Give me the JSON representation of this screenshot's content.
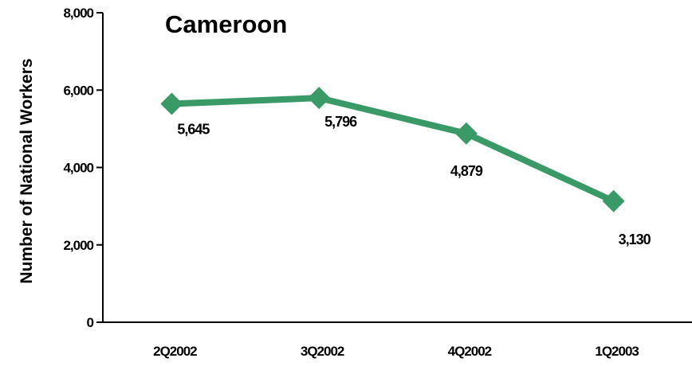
{
  "chart_data": {
    "type": "line",
    "title": "Cameroon",
    "ylabel": "Number of National Workers",
    "xlabel": "",
    "categories": [
      "2Q2002",
      "3Q2002",
      "4Q2002",
      "1Q2003"
    ],
    "series": [
      {
        "values": [
          5645,
          5796,
          4879,
          3130
        ]
      }
    ],
    "data_labels": [
      "5,645",
      "5,796",
      "4,879",
      "3,130"
    ],
    "ylim": [
      0,
      8000
    ],
    "yticks": [
      0,
      2000,
      4000,
      6000,
      8000
    ],
    "ytick_labels": [
      "0",
      "2,000",
      "4,000",
      "6,000",
      "8,000"
    ],
    "grid": false,
    "legend": "none",
    "marker": "diamond",
    "line_color": "#3a9a67"
  }
}
